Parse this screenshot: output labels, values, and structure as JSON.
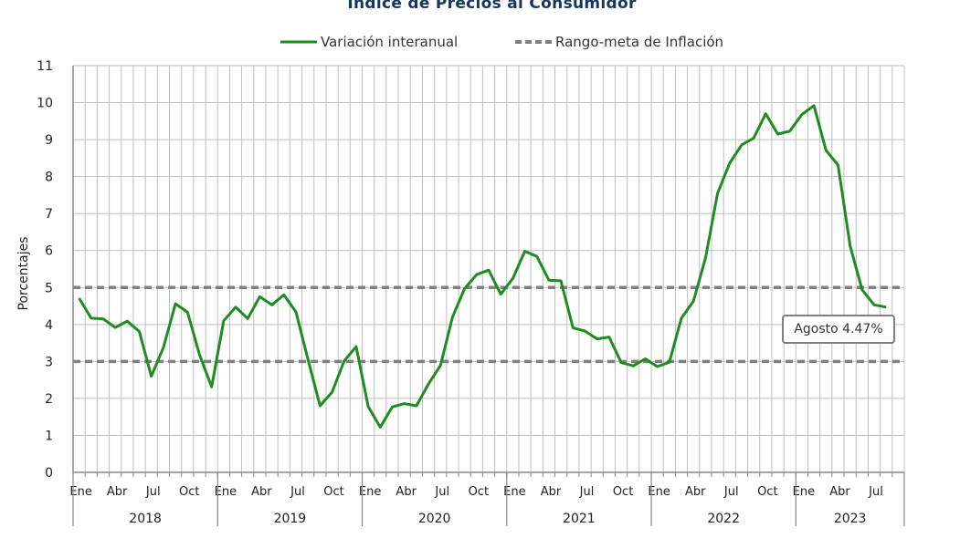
{
  "chart_data": {
    "type": "line",
    "title": "Índice de Precios al Consumidor",
    "ylabel": "Porcentajes",
    "ylim": [
      0,
      11
    ],
    "yticks": [
      "0",
      "1",
      "2",
      "3",
      "4",
      "5",
      "6",
      "7",
      "8",
      "9",
      "10",
      "11"
    ],
    "grid": true,
    "legend_position": "top",
    "month_tick_labels": [
      "Ene",
      "Abr",
      "Jul",
      "Oct"
    ],
    "years": [
      "2018",
      "2019",
      "2020",
      "2021",
      "2022",
      "2023"
    ],
    "series": [
      {
        "name": "Variación interanual",
        "color": "#1e8c1e",
        "start": "2018-01",
        "values": [
          4.71,
          4.17,
          4.15,
          3.92,
          4.09,
          3.81,
          2.6,
          3.38,
          4.56,
          4.33,
          3.18,
          2.31,
          4.1,
          4.47,
          4.16,
          4.75,
          4.53,
          4.8,
          4.34,
          3.05,
          1.8,
          2.17,
          3.01,
          3.4,
          1.78,
          1.22,
          1.77,
          1.86,
          1.8,
          2.39,
          2.89,
          4.2,
          4.97,
          5.35,
          5.47,
          4.82,
          5.24,
          5.98,
          5.84,
          5.2,
          5.18,
          3.91,
          3.82,
          3.61,
          3.66,
          2.97,
          2.88,
          3.07,
          2.86,
          2.98,
          4.17,
          4.63,
          5.8,
          7.55,
          8.36,
          8.86,
          9.04,
          9.7,
          9.15,
          9.23,
          9.68,
          9.92,
          8.71,
          8.31,
          6.13,
          4.94,
          4.53,
          4.47
        ]
      },
      {
        "name": "Rango-meta de Inflación",
        "color": "#808080",
        "lines": [
          3,
          5
        ]
      }
    ],
    "annotation": "Agosto 4.47%"
  }
}
